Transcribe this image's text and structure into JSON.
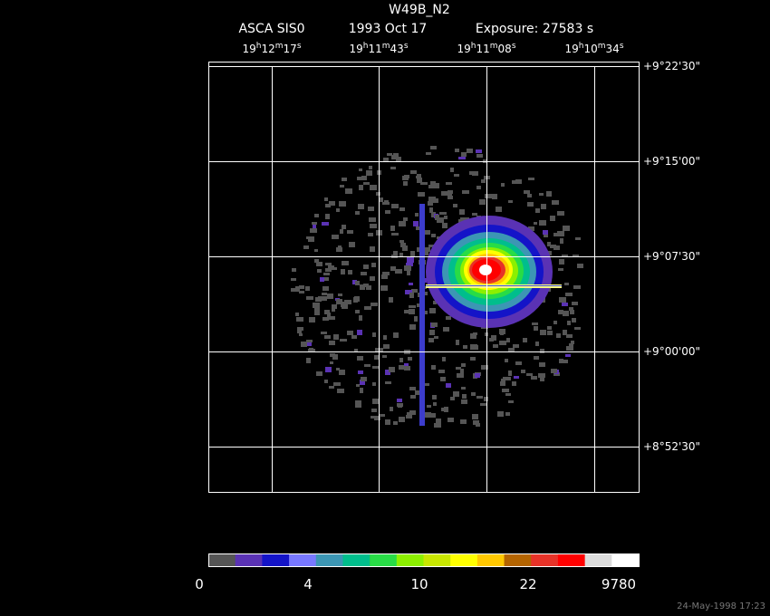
{
  "title": "W49B_N2",
  "subtitle": [
    "ASCA SIS0",
    "1993 Oct 17",
    "Exposure: 27583 s"
  ],
  "ra_labels": [
    [
      "19",
      "h",
      "12",
      "m",
      "17",
      "s"
    ],
    [
      "19",
      "h",
      "11",
      "m",
      "43",
      "s"
    ],
    [
      "19",
      "h",
      "11",
      "m",
      "08",
      "s"
    ],
    [
      "19",
      "h",
      "10",
      "m",
      "34",
      "s"
    ]
  ],
  "dec_labels": [
    "+9°22'30\"",
    "+9°15'00\"",
    "+9°07'30\"",
    "+9°00'00\"",
    "+8°52'30\""
  ],
  "colorbar": {
    "colors": [
      "#555555",
      "#5a32b4",
      "#1414c8",
      "#7878ff",
      "#3c96b4",
      "#00be8c",
      "#28dc46",
      "#8cf000",
      "#c8e600",
      "#ffff00",
      "#ffc800",
      "#b46400",
      "#e63228",
      "#ff0000",
      "#dcdcdc",
      "#ffffff"
    ],
    "labels": [
      "0",
      "4",
      "10",
      "22",
      "9780"
    ]
  },
  "timestamp": "24-May-1998 17:23"
}
